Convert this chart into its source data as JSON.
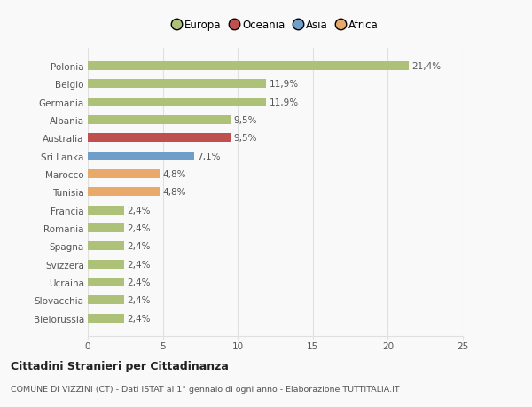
{
  "categories": [
    "Bielorussia",
    "Slovacchia",
    "Ucraina",
    "Svizzera",
    "Spagna",
    "Romania",
    "Francia",
    "Tunisia",
    "Marocco",
    "Sri Lanka",
    "Australia",
    "Albania",
    "Germania",
    "Belgio",
    "Polonia"
  ],
  "values": [
    2.4,
    2.4,
    2.4,
    2.4,
    2.4,
    2.4,
    2.4,
    4.8,
    4.8,
    7.1,
    9.5,
    9.5,
    11.9,
    11.9,
    21.4
  ],
  "bar_colors": [
    "#adc178",
    "#adc178",
    "#adc178",
    "#adc178",
    "#adc178",
    "#adc178",
    "#adc178",
    "#e8a96a",
    "#e8a96a",
    "#6f9fc8",
    "#c05050",
    "#adc178",
    "#adc178",
    "#adc178",
    "#adc178"
  ],
  "labels": [
    "2,4%",
    "2,4%",
    "2,4%",
    "2,4%",
    "2,4%",
    "2,4%",
    "2,4%",
    "4,8%",
    "4,8%",
    "7,1%",
    "9,5%",
    "9,5%",
    "11,9%",
    "11,9%",
    "21,4%"
  ],
  "legend": [
    {
      "label": "Europa",
      "color": "#adc178"
    },
    {
      "label": "Oceania",
      "color": "#c05050"
    },
    {
      "label": "Asia",
      "color": "#6f9fc8"
    },
    {
      "label": "Africa",
      "color": "#e8a96a"
    }
  ],
  "xlim": [
    0,
    25
  ],
  "xticks": [
    0,
    5,
    10,
    15,
    20,
    25
  ],
  "title": "Cittadini Stranieri per Cittadinanza",
  "subtitle": "COMUNE DI VIZZINI (CT) - Dati ISTAT al 1° gennaio di ogni anno - Elaborazione TUTTITALIA.IT",
  "background_color": "#f9f9f9",
  "grid_color": "#e0e0e0",
  "label_fontsize": 7.5,
  "tick_fontsize": 7.5,
  "bar_height": 0.5
}
